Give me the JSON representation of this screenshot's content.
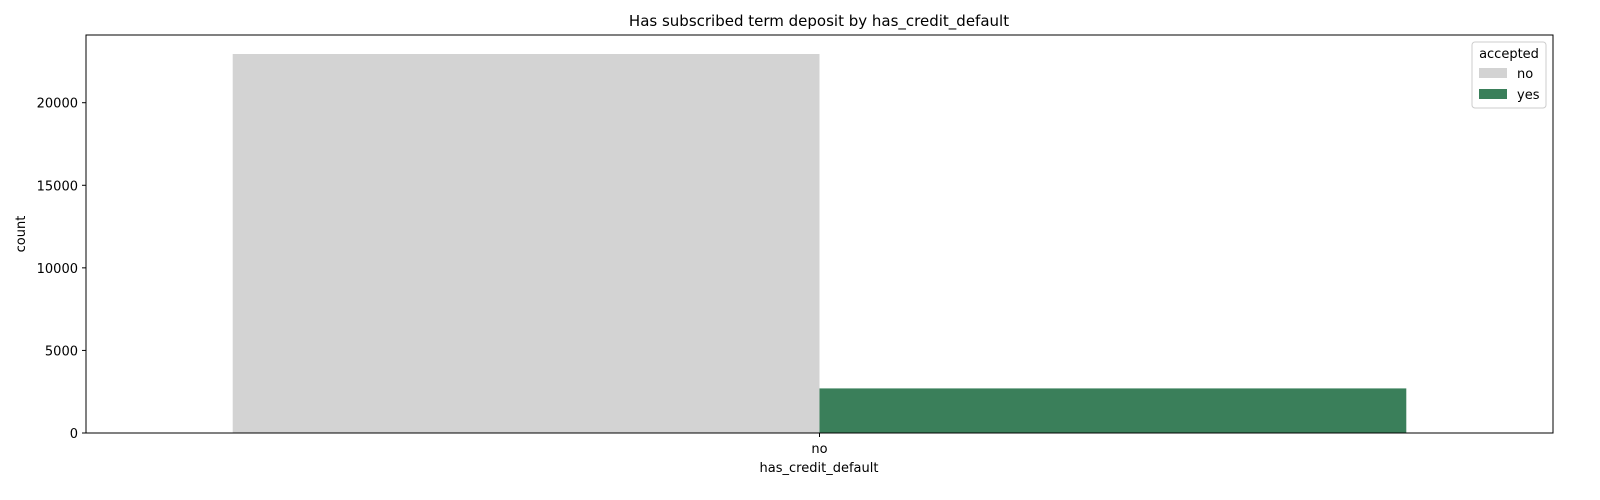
{
  "chart_data": {
    "type": "bar",
    "title": "Has subscribed term deposit by has_credit_default",
    "xlabel": "has_credit_default",
    "ylabel": "count",
    "categories": [
      "no"
    ],
    "series": [
      {
        "name": "no",
        "values": [
          22950
        ],
        "color": "#d3d3d3"
      },
      {
        "name": "yes",
        "values": [
          2700
        ],
        "color": "#3a7f5a"
      }
    ],
    "ylim": [
      0,
      24100
    ],
    "yticks": [
      0,
      5000,
      10000,
      15000,
      20000
    ],
    "grid": false,
    "legend": {
      "title": "accepted",
      "placement": "top-right"
    }
  }
}
